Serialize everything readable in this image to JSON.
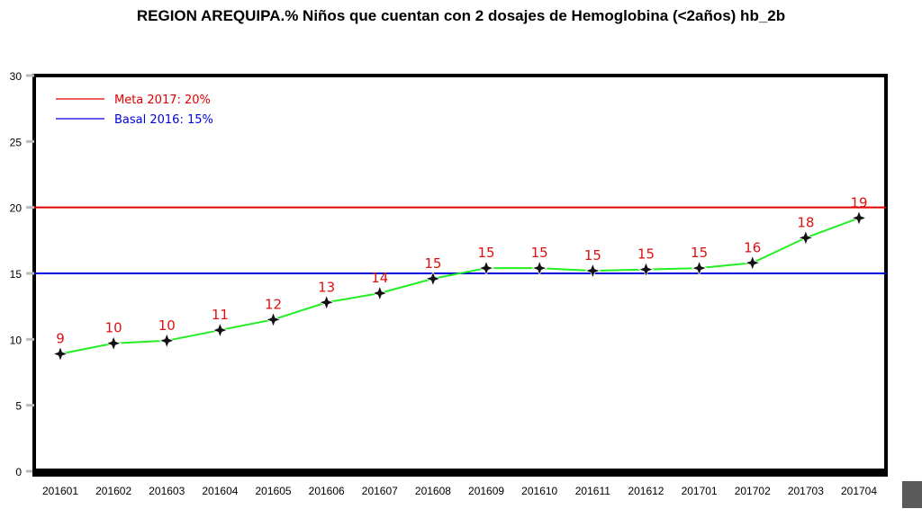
{
  "chart_data": {
    "type": "line",
    "title": "REGION AREQUIPA.% Niños que cuentan con 2 dosajes de Hemoglobina (<2años) hb_2b",
    "xlabel": "",
    "ylabel": "",
    "ylim": [
      0,
      30
    ],
    "yticks": [
      "0",
      "5",
      "10",
      "15",
      "20",
      "25",
      "30"
    ],
    "categories": [
      "201601",
      "201602",
      "201603",
      "201604",
      "201605",
      "201606",
      "201607",
      "201608",
      "201609",
      "201610",
      "201611",
      "201612",
      "201701",
      "201702",
      "201703",
      "201704"
    ],
    "series": [
      {
        "values": [
          8.9,
          9.7,
          9.9,
          10.7,
          11.5,
          12.8,
          13.5,
          14.6,
          15.4,
          15.4,
          15.2,
          15.3,
          15.4,
          15.8,
          17.7,
          19.2
        ],
        "data_labels": [
          "9",
          "10",
          "10",
          "11",
          "12",
          "13",
          "14",
          "15",
          "15",
          "15",
          "15",
          "15",
          "15",
          "16",
          "18",
          "19"
        ],
        "color": "#22ee22",
        "marker_color": "#111111",
        "label_color": "#dd1111"
      }
    ],
    "reference_lines": [
      {
        "name": "Meta 2017: 20%",
        "value": 20,
        "color": "#e00000"
      },
      {
        "name": "Basal 2016: 15%",
        "value": 15,
        "color": "#0000dd"
      }
    ],
    "legend_position": "top-left",
    "grid": false
  }
}
